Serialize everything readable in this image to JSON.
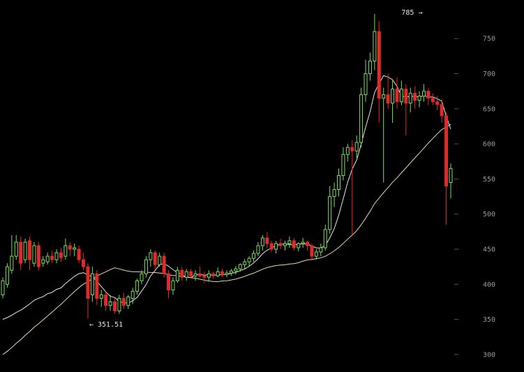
{
  "chart_data": {
    "type": "candlestick",
    "title": "",
    "xlabel": "",
    "ylabel": "",
    "ylim": [
      290,
      790
    ],
    "y_ticks": [
      300,
      350,
      400,
      450,
      500,
      550,
      600,
      650,
      700,
      750
    ],
    "y_axis_position": "right",
    "grid": false,
    "legend": "none",
    "colors": {
      "background": "#000000",
      "up": "#7ddc5f",
      "down": "#e02b2b",
      "short_ma": "#e8e8e8",
      "long_ma": "#e8d8a0",
      "ticks": "#9a9a9a"
    },
    "annotations": [
      {
        "text": "785 →",
        "index": 94,
        "value": 785
      },
      {
        "text": "← 351.51",
        "index": 19,
        "value": 351.51
      }
    ],
    "candles": [
      {
        "o": 385,
        "h": 410,
        "l": 380,
        "c": 405
      },
      {
        "o": 400,
        "h": 430,
        "l": 395,
        "c": 425
      },
      {
        "o": 420,
        "h": 470,
        "l": 415,
        "c": 440
      },
      {
        "o": 440,
        "h": 470,
        "l": 435,
        "c": 460
      },
      {
        "o": 460,
        "h": 468,
        "l": 420,
        "c": 430
      },
      {
        "o": 435,
        "h": 465,
        "l": 430,
        "c": 460
      },
      {
        "o": 462,
        "h": 468,
        "l": 420,
        "c": 435
      },
      {
        "o": 430,
        "h": 460,
        "l": 425,
        "c": 455
      },
      {
        "o": 455,
        "h": 460,
        "l": 420,
        "c": 425
      },
      {
        "o": 430,
        "h": 440,
        "l": 425,
        "c": 435
      },
      {
        "o": 432,
        "h": 445,
        "l": 428,
        "c": 440
      },
      {
        "o": 440,
        "h": 448,
        "l": 430,
        "c": 435
      },
      {
        "o": 435,
        "h": 450,
        "l": 430,
        "c": 445
      },
      {
        "o": 445,
        "h": 452,
        "l": 432,
        "c": 438
      },
      {
        "o": 440,
        "h": 465,
        "l": 435,
        "c": 455
      },
      {
        "o": 455,
        "h": 460,
        "l": 440,
        "c": 450
      },
      {
        "o": 450,
        "h": 458,
        "l": 440,
        "c": 452
      },
      {
        "o": 450,
        "h": 455,
        "l": 430,
        "c": 435
      },
      {
        "o": 435,
        "h": 445,
        "l": 420,
        "c": 425
      },
      {
        "o": 425,
        "h": 430,
        "l": 351,
        "c": 380
      },
      {
        "o": 385,
        "h": 425,
        "l": 375,
        "c": 415
      },
      {
        "o": 415,
        "h": 420,
        "l": 370,
        "c": 380
      },
      {
        "o": 380,
        "h": 392,
        "l": 368,
        "c": 385
      },
      {
        "o": 385,
        "h": 390,
        "l": 362,
        "c": 370
      },
      {
        "o": 370,
        "h": 385,
        "l": 362,
        "c": 375
      },
      {
        "o": 375,
        "h": 380,
        "l": 358,
        "c": 362
      },
      {
        "o": 362,
        "h": 385,
        "l": 358,
        "c": 380
      },
      {
        "o": 380,
        "h": 388,
        "l": 365,
        "c": 370
      },
      {
        "o": 370,
        "h": 385,
        "l": 365,
        "c": 382
      },
      {
        "o": 380,
        "h": 395,
        "l": 372,
        "c": 390
      },
      {
        "o": 390,
        "h": 408,
        "l": 385,
        "c": 405
      },
      {
        "o": 405,
        "h": 420,
        "l": 400,
        "c": 415
      },
      {
        "o": 415,
        "h": 440,
        "l": 410,
        "c": 435
      },
      {
        "o": 435,
        "h": 450,
        "l": 425,
        "c": 445
      },
      {
        "o": 445,
        "h": 448,
        "l": 420,
        "c": 428
      },
      {
        "o": 428,
        "h": 445,
        "l": 425,
        "c": 440
      },
      {
        "o": 440,
        "h": 445,
        "l": 410,
        "c": 415
      },
      {
        "o": 415,
        "h": 420,
        "l": 380,
        "c": 392
      },
      {
        "o": 392,
        "h": 410,
        "l": 385,
        "c": 405
      },
      {
        "o": 405,
        "h": 425,
        "l": 402,
        "c": 420
      },
      {
        "o": 420,
        "h": 425,
        "l": 405,
        "c": 410
      },
      {
        "o": 410,
        "h": 422,
        "l": 405,
        "c": 418
      },
      {
        "o": 418,
        "h": 422,
        "l": 408,
        "c": 412
      },
      {
        "o": 412,
        "h": 420,
        "l": 405,
        "c": 415
      },
      {
        "o": 415,
        "h": 425,
        "l": 410,
        "c": 412
      },
      {
        "o": 412,
        "h": 418,
        "l": 402,
        "c": 410
      },
      {
        "o": 410,
        "h": 420,
        "l": 405,
        "c": 415
      },
      {
        "o": 415,
        "h": 418,
        "l": 408,
        "c": 412
      },
      {
        "o": 412,
        "h": 424,
        "l": 410,
        "c": 418
      },
      {
        "o": 418,
        "h": 422,
        "l": 410,
        "c": 414
      },
      {
        "o": 414,
        "h": 420,
        "l": 410,
        "c": 416
      },
      {
        "o": 416,
        "h": 422,
        "l": 412,
        "c": 419
      },
      {
        "o": 419,
        "h": 426,
        "l": 414,
        "c": 422
      },
      {
        "o": 422,
        "h": 430,
        "l": 418,
        "c": 428
      },
      {
        "o": 428,
        "h": 436,
        "l": 422,
        "c": 432
      },
      {
        "o": 432,
        "h": 440,
        "l": 426,
        "c": 437
      },
      {
        "o": 437,
        "h": 448,
        "l": 432,
        "c": 444
      },
      {
        "o": 444,
        "h": 460,
        "l": 440,
        "c": 455
      },
      {
        "o": 455,
        "h": 470,
        "l": 448,
        "c": 466
      },
      {
        "o": 466,
        "h": 474,
        "l": 452,
        "c": 458
      },
      {
        "o": 458,
        "h": 462,
        "l": 446,
        "c": 450
      },
      {
        "o": 450,
        "h": 462,
        "l": 444,
        "c": 458
      },
      {
        "o": 458,
        "h": 465,
        "l": 450,
        "c": 455
      },
      {
        "o": 455,
        "h": 462,
        "l": 448,
        "c": 458
      },
      {
        "o": 458,
        "h": 468,
        "l": 452,
        "c": 462
      },
      {
        "o": 462,
        "h": 466,
        "l": 448,
        "c": 452
      },
      {
        "o": 452,
        "h": 460,
        "l": 447,
        "c": 458
      },
      {
        "o": 458,
        "h": 466,
        "l": 452,
        "c": 460
      },
      {
        "o": 460,
        "h": 462,
        "l": 448,
        "c": 455
      },
      {
        "o": 455,
        "h": 458,
        "l": 436,
        "c": 440
      },
      {
        "o": 440,
        "h": 450,
        "l": 435,
        "c": 446
      },
      {
        "o": 446,
        "h": 458,
        "l": 440,
        "c": 452
      },
      {
        "o": 452,
        "h": 485,
        "l": 448,
        "c": 478
      },
      {
        "o": 478,
        "h": 540,
        "l": 472,
        "c": 525
      },
      {
        "o": 525,
        "h": 545,
        "l": 510,
        "c": 535
      },
      {
        "o": 535,
        "h": 565,
        "l": 525,
        "c": 555
      },
      {
        "o": 555,
        "h": 595,
        "l": 548,
        "c": 585
      },
      {
        "o": 585,
        "h": 600,
        "l": 575,
        "c": 595
      },
      {
        "o": 595,
        "h": 605,
        "l": 470,
        "c": 590
      },
      {
        "o": 590,
        "h": 612,
        "l": 580,
        "c": 602
      },
      {
        "o": 602,
        "h": 680,
        "l": 595,
        "c": 670
      },
      {
        "o": 670,
        "h": 720,
        "l": 660,
        "c": 700
      },
      {
        "o": 700,
        "h": 730,
        "l": 690,
        "c": 718
      },
      {
        "o": 718,
        "h": 785,
        "l": 705,
        "c": 760
      },
      {
        "o": 760,
        "h": 775,
        "l": 630,
        "c": 665
      },
      {
        "o": 665,
        "h": 680,
        "l": 545,
        "c": 670
      },
      {
        "o": 670,
        "h": 700,
        "l": 650,
        "c": 658
      },
      {
        "o": 658,
        "h": 690,
        "l": 630,
        "c": 678
      },
      {
        "o": 678,
        "h": 695,
        "l": 650,
        "c": 660
      },
      {
        "o": 660,
        "h": 690,
        "l": 655,
        "c": 678
      },
      {
        "o": 678,
        "h": 685,
        "l": 612,
        "c": 658
      },
      {
        "o": 658,
        "h": 680,
        "l": 645,
        "c": 672
      },
      {
        "o": 672,
        "h": 682,
        "l": 650,
        "c": 662
      },
      {
        "o": 662,
        "h": 675,
        "l": 652,
        "c": 668
      },
      {
        "o": 668,
        "h": 685,
        "l": 660,
        "c": 675
      },
      {
        "o": 675,
        "h": 680,
        "l": 655,
        "c": 665
      },
      {
        "o": 665,
        "h": 672,
        "l": 655,
        "c": 660
      },
      {
        "o": 660,
        "h": 668,
        "l": 648,
        "c": 656
      },
      {
        "o": 656,
        "h": 664,
        "l": 630,
        "c": 640
      },
      {
        "o": 640,
        "h": 645,
        "l": 485,
        "c": 540
      },
      {
        "o": 545,
        "h": 572,
        "l": 522,
        "c": 565
      }
    ]
  }
}
